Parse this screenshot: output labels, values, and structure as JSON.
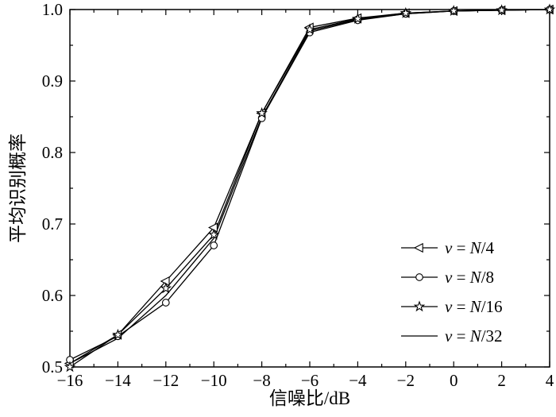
{
  "chart_data": {
    "type": "line",
    "title": "",
    "xlabel": "信噪比/dB",
    "ylabel": "平均识别概率",
    "xlim": [
      -16,
      4
    ],
    "ylim": [
      0.5,
      1.0
    ],
    "xticks": [
      -16,
      -14,
      -12,
      -10,
      -8,
      -6,
      -4,
      -2,
      0,
      2,
      4
    ],
    "yticks": [
      0.5,
      0.6,
      0.7,
      0.8,
      0.9,
      1.0
    ],
    "grid": false,
    "legend": {
      "position": "inside-lower-right",
      "border": false
    },
    "x": [
      -16,
      -14,
      -12,
      -10,
      -8,
      -6,
      -4,
      -2,
      0,
      2,
      4
    ],
    "series": [
      {
        "name": "v = N/4",
        "marker": "triangle-left",
        "color": "#000000",
        "values": [
          0.505,
          0.545,
          0.62,
          0.695,
          0.855,
          0.975,
          0.988,
          0.995,
          0.998,
          0.999,
          1.0
        ]
      },
      {
        "name": "v = N/8",
        "marker": "circle",
        "color": "#000000",
        "values": [
          0.51,
          0.543,
          0.59,
          0.67,
          0.848,
          0.968,
          0.985,
          0.994,
          0.998,
          0.999,
          1.0
        ]
      },
      {
        "name": "v = N/16",
        "marker": "star",
        "color": "#000000",
        "values": [
          0.5,
          0.545,
          0.61,
          0.685,
          0.855,
          0.972,
          0.987,
          0.995,
          0.998,
          0.999,
          1.0
        ]
      },
      {
        "name": "v = N/32",
        "marker": "none",
        "color": "#000000",
        "values": [
          0.505,
          0.54,
          0.6,
          0.68,
          0.85,
          0.97,
          0.986,
          0.994,
          0.998,
          0.999,
          1.0
        ]
      }
    ],
    "axis_color": "#000000",
    "background": "#ffffff"
  }
}
